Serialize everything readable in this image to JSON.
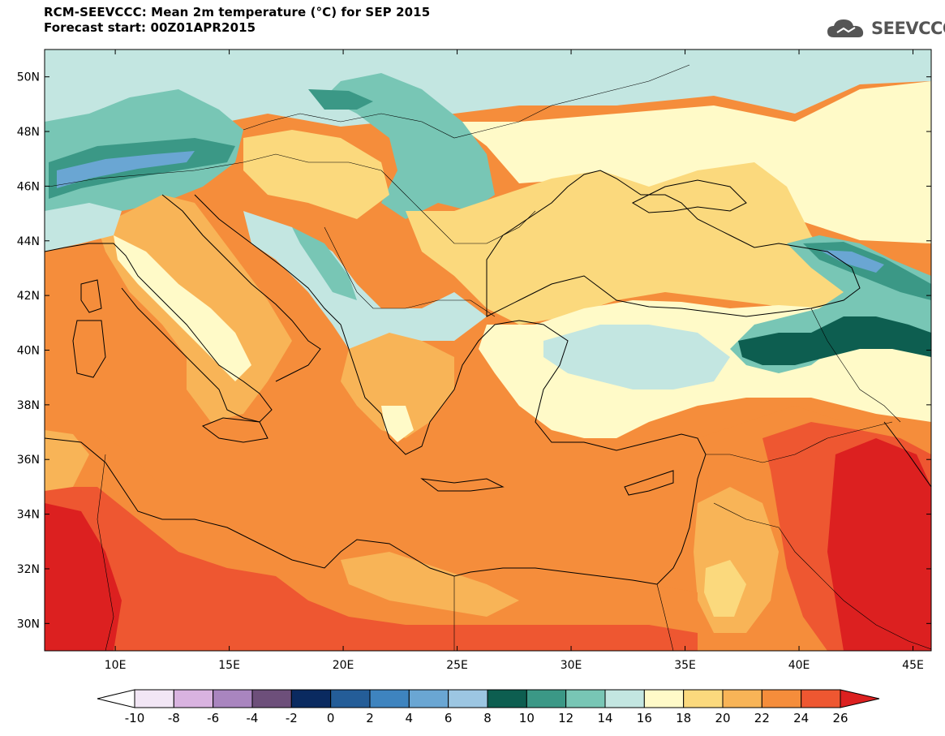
{
  "header": {
    "title": "RCM-SEEVCCC: Mean 2m temperature (°C) for SEP 2015",
    "subtitle": "Forecast start: 00Z01APR2015"
  },
  "logo": {
    "text": "SEEVCCC",
    "icon": "cloud-icon"
  },
  "map": {
    "lat_labels": [
      "50N",
      "48N",
      "46N",
      "44N",
      "42N",
      "40N",
      "38N",
      "36N",
      "34N",
      "32N",
      "30N"
    ],
    "lat_values": [
      50,
      48,
      46,
      44,
      42,
      40,
      38,
      36,
      34,
      32,
      30
    ],
    "lon_labels": [
      "10E",
      "15E",
      "20E",
      "25E",
      "30E",
      "35E",
      "40E",
      "45E"
    ],
    "lon_values": [
      10,
      15,
      20,
      25,
      30,
      35,
      40,
      45
    ],
    "lon_range": [
      6.9,
      45.8
    ],
    "lat_range": [
      29.0,
      51.0
    ]
  },
  "colorbar": {
    "labels": [
      "-10",
      "-8",
      "-6",
      "-4",
      "-2",
      "0",
      "2",
      "4",
      "6",
      "8",
      "10",
      "12",
      "14",
      "16",
      "18",
      "20",
      "22",
      "24",
      "26"
    ],
    "colors": [
      "#f2e6f5",
      "#d9b3e0",
      "#a985bf",
      "#6d4f7a",
      "#0a2a60",
      "#245d98",
      "#3e84bf",
      "#6aa6d3",
      "#9cc6e2",
      "#0d5e50",
      "#3b9886",
      "#78c6b5",
      "#c3e6e1",
      "#fffac8",
      "#fbd97d",
      "#f8b457",
      "#f58d3b",
      "#ee5731"
    ],
    "under_color": "#ffffff",
    "over_color": "#dc2020"
  },
  "colors": {
    "sea_orange": "#f58d3b",
    "hot_red": "#dc2020",
    "warm_light": "#f8b457",
    "yellow": "#fbd97d",
    "cream": "#fffac8",
    "pale_teal": "#c3e6e1",
    "mid_teal": "#78c6b5",
    "teal": "#3b9886",
    "dark_teal": "#0d5e50",
    "blue": "#6aa6d3",
    "red_orange": "#ee5731"
  }
}
